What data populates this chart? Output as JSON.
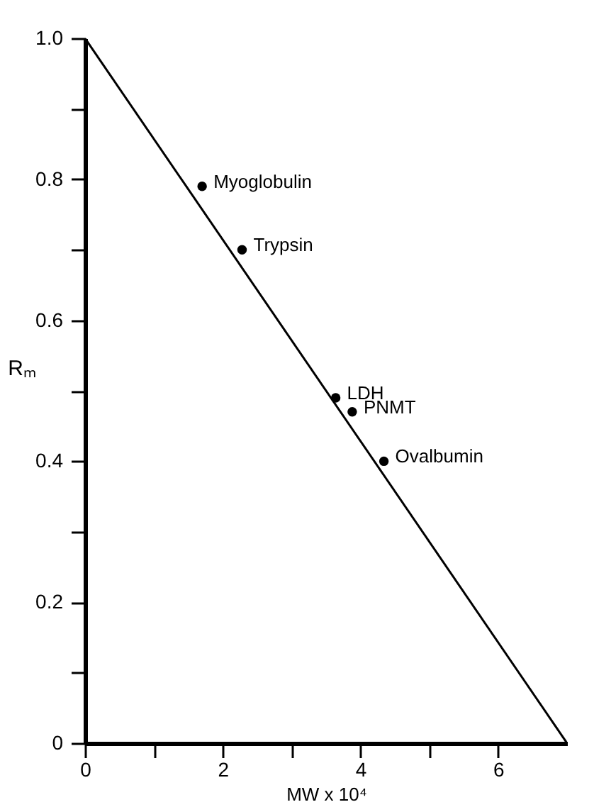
{
  "chart_data": {
    "type": "scatter",
    "xlabel": "MW x 10⁴",
    "ylabel": "Rₘ",
    "xlim": [
      0,
      7
    ],
    "ylim": [
      0,
      1.0
    ],
    "xticks": [
      0,
      {
        "value": 1,
        "label": null
      },
      2,
      {
        "value": 3,
        "label": null
      },
      4,
      {
        "value": 5,
        "label": null
      },
      6
    ],
    "yticks": [
      0,
      {
        "value": 0.1,
        "label": null
      },
      0.2,
      {
        "value": 0.3,
        "label": null
      },
      0.4,
      {
        "value": 0.5,
        "label": null
      },
      0.6,
      {
        "value": 0.7,
        "label": null
      },
      0.8,
      {
        "value": 0.9,
        "label": null
      },
      {
        "value": 1.0,
        "label": "1.0"
      }
    ],
    "grid": false,
    "series": [
      {
        "color": "#000000",
        "marker": "circle",
        "x": [
          1.7,
          2.28,
          3.64,
          3.88,
          4.34
        ],
        "values": [
          0.79,
          0.7,
          0.49,
          0.47,
          0.4
        ]
      },
      {
        "type": "line",
        "color": "#000000",
        "line_style": "solid",
        "x": [
          0,
          7.0
        ],
        "values": [
          1.0,
          0.0
        ]
      }
    ],
    "annotations": [
      {
        "text": "Myoglobulin",
        "x": 1.7,
        "y": 0.79
      },
      {
        "text": "Trypsin",
        "x": 2.28,
        "y": 0.7
      },
      {
        "text": "LDH",
        "x": 3.64,
        "y": 0.49
      },
      {
        "text": "PNMT",
        "x": 3.88,
        "y": 0.47
      },
      {
        "text": "Ovalbumin",
        "x": 4.34,
        "y": 0.4
      }
    ]
  }
}
